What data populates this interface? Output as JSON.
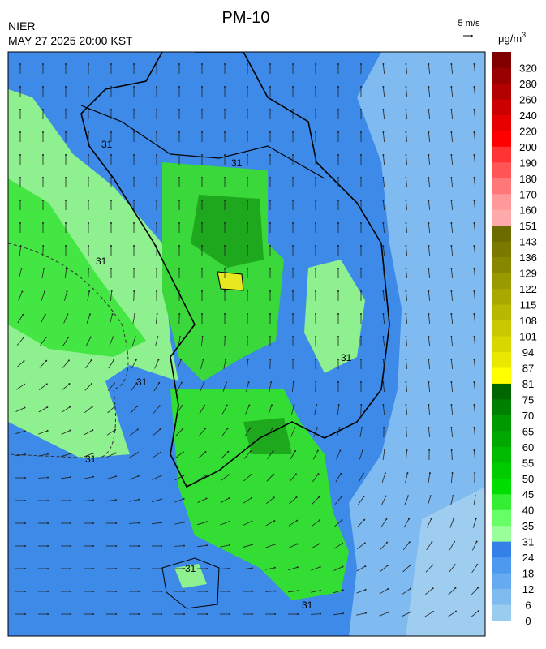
{
  "header": {
    "title": "PM-10",
    "source": "NIER",
    "timestamp": "MAY 27 2025 20:00 KST",
    "wind_scale": "5 m/s",
    "unit": "μg/m",
    "unit_sup": "3"
  },
  "map": {
    "contour_label": "31"
  },
  "legend": {
    "labels": [
      "320",
      "280",
      "260",
      "240",
      "220",
      "200",
      "190",
      "180",
      "170",
      "160",
      "151",
      "143",
      "136",
      "129",
      "122",
      "115",
      "108",
      "101",
      "94",
      "87",
      "81",
      "75",
      "70",
      "65",
      "60",
      "55",
      "50",
      "45",
      "40",
      "35",
      "31",
      "24",
      "18",
      "12",
      "6",
      "0"
    ],
    "colors": [
      "#800000",
      "#990000",
      "#b30000",
      "#cc0000",
      "#e60000",
      "#ff0000",
      "#ff3333",
      "#ff5555",
      "#ff7777",
      "#ff9999",
      "#ffaaaa",
      "#6b6b00",
      "#7a7a00",
      "#888800",
      "#999900",
      "#a8a800",
      "#b8b800",
      "#c8c800",
      "#d8d800",
      "#e8e800",
      "#ffff00",
      "#006600",
      "#008000",
      "#009900",
      "#00a800",
      "#00bb00",
      "#00cc00",
      "#00dd00",
      "#33ee33",
      "#66ff66",
      "#99ff99",
      "#3380e6",
      "#4d99f0",
      "#66aaf0",
      "#80bbf0",
      "#99ccee"
    ]
  }
}
